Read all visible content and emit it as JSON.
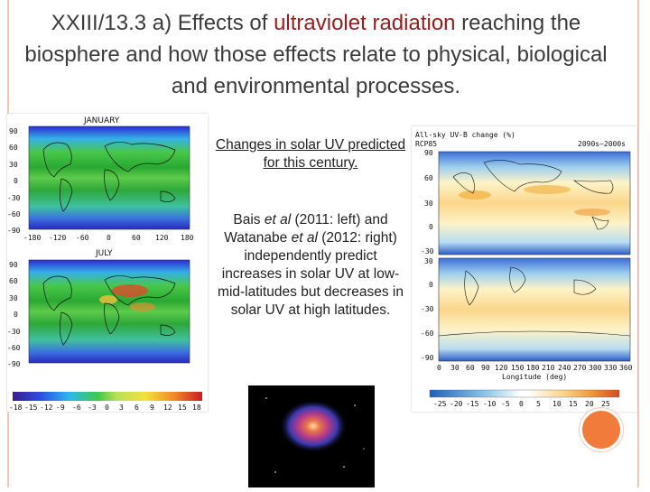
{
  "slide": {
    "title_prefix": "XXIII/13.3 a) Effects of ",
    "title_highlight": "ultraviolet radiation",
    "title_suffix": " reaching the biosphere and how those effects relate to physical, biological and environmental processes.",
    "caption_top": "Changes in solar UV predicted for this century.",
    "caption_main_1": "Bais ",
    "caption_main_em1": "et al",
    "caption_main_2": " (2011: left) and Watanabe ",
    "caption_main_em2": "et al",
    "caption_main_3": " (2012: right) independently predict increases in solar UV at low-mid-latitudes but decreases in solar UV at high latitudes."
  },
  "left_figure": {
    "panel_top_label": "JANUARY",
    "panel_bottom_label": "JULY",
    "lat_ticks": [
      "90",
      "60",
      "30",
      "0",
      "-30",
      "-60",
      "-90"
    ],
    "lon_ticks": [
      "-180",
      "-120",
      "-60",
      "0",
      "60",
      "120",
      "180"
    ],
    "colorbar_ticks": [
      "-18",
      "-15",
      "-12",
      "-9",
      "-6",
      "-3",
      "0",
      "3",
      "6",
      "9",
      "12",
      "15",
      "18"
    ]
  },
  "right_figure": {
    "header_left": "All-sky UV-B change (%)",
    "header_sub": "RCP85",
    "header_right": "2090s–2000s",
    "lat_ticks_top": [
      "90",
      "60",
      "30",
      "0",
      "-30"
    ],
    "lat_ticks_bottom": [
      "30",
      "0",
      "-30",
      "-60",
      "-90"
    ],
    "lon_ticks": [
      "0",
      "30",
      "60",
      "90",
      "120",
      "150",
      "180",
      "210",
      "240",
      "270",
      "300",
      "330",
      "360"
    ],
    "xlabel": "Longitude (deg)",
    "colorbar_ticks": [
      "-25",
      "-20",
      "-15",
      "-10",
      "-5",
      "0",
      "5",
      "10",
      "15",
      "20",
      "25"
    ]
  },
  "colors": {
    "title_highlight": "#9b1b1b",
    "frame_line": "#f3c7b3",
    "accent_circle": "#f07b3a"
  }
}
